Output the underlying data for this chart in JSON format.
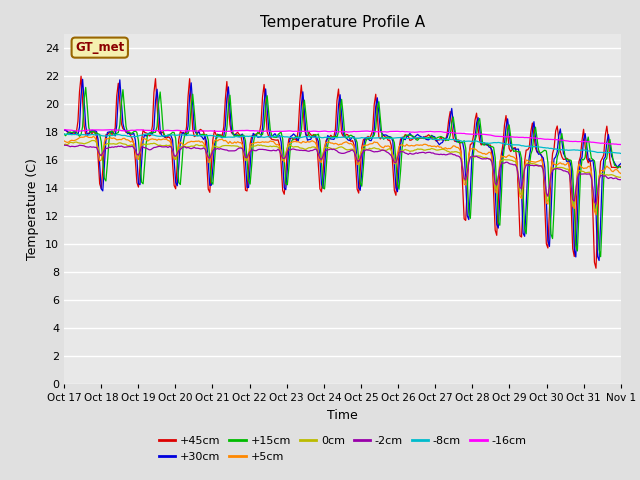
{
  "title": "Temperature Profile A",
  "xlabel": "Time",
  "ylabel": "Temperature (C)",
  "ylim": [
    0,
    25
  ],
  "xlim_days": [
    0,
    15.5
  ],
  "background_color": "#e0e0e0",
  "plot_bg": "#e8e8e8",
  "grid_color": "#ffffff",
  "title_fontsize": 11,
  "axis_fontsize": 9,
  "tick_fontsize": 8,
  "legend_label": "GT_met",
  "series_colors": {
    "+45cm": "#dd0000",
    "+30cm": "#0000dd",
    "+15cm": "#00bb00",
    "+5cm": "#ff8800",
    "0cm": "#bbbb00",
    "-2cm": "#9900aa",
    "-8cm": "#00bbcc",
    "-16cm": "#ff00ff"
  },
  "x_tick_labels": [
    "Oct 17",
    "Oct 18",
    "Oct 19",
    "Oct 20",
    "Oct 21",
    "Oct 22",
    "Oct 23",
    "Oct 24",
    "Oct 25",
    "Oct 26",
    "Oct 27",
    "Oct 28",
    "Oct 29",
    "Oct 30",
    "Oct 31",
    "Nov 1"
  ],
  "n_points": 360,
  "n_days": 15
}
